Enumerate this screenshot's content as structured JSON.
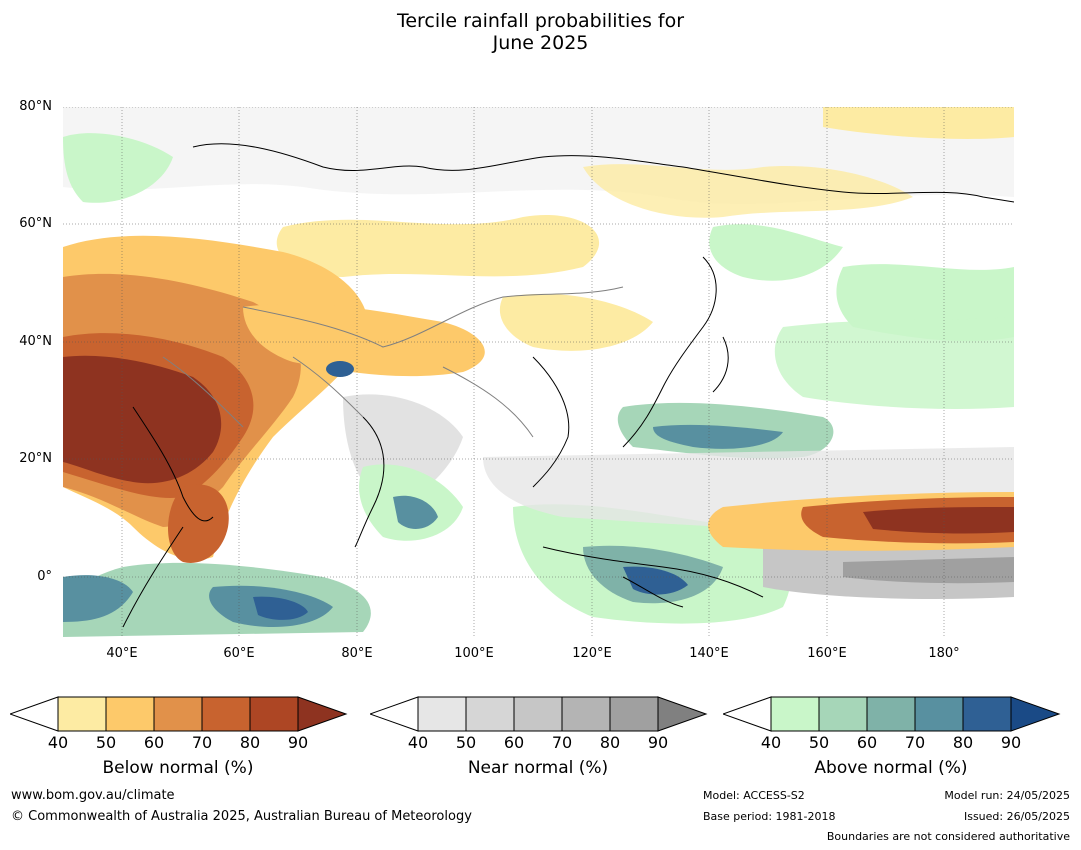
{
  "title_line1": "Tercile rainfall probabilities for",
  "title_line2": "June 2025",
  "map": {
    "lat_labels": [
      "80°N",
      "60°N",
      "40°N",
      "20°N",
      "0°"
    ],
    "lon_labels": [
      "40°E",
      "60°E",
      "80°E",
      "100°E",
      "120°E",
      "140°E",
      "160°E",
      "180°"
    ],
    "colors": {
      "below": [
        "#fdeba3",
        "#fdc96a",
        "#e1914a",
        "#c8632f",
        "#ad4624",
        "#8e3320"
      ],
      "near": [
        "#e6e6e6",
        "#d6d6d6",
        "#c6c6c6",
        "#b4b4b4",
        "#a0a0a0",
        "#808080"
      ],
      "above": [
        "#c9f6c9",
        "#a6d6b8",
        "#7fb2a8",
        "#5890a0",
        "#2f6094",
        "#1a4a86"
      ]
    }
  },
  "colorbars": [
    {
      "name": "below",
      "title": "Below normal (%)",
      "ticks": [
        "40",
        "50",
        "60",
        "70",
        "80",
        "90"
      ]
    },
    {
      "name": "near",
      "title": "Near normal (%)",
      "ticks": [
        "40",
        "50",
        "60",
        "70",
        "80",
        "90"
      ]
    },
    {
      "name": "above",
      "title": "Above normal (%)",
      "ticks": [
        "40",
        "50",
        "60",
        "70",
        "80",
        "90"
      ]
    }
  ],
  "footer": {
    "website": "www.bom.gov.au/climate",
    "copyright": "© Commonwealth of Australia 2025, Australian Bureau of Meteorology",
    "model": "Model: ACCESS-S2",
    "base_period": "Base period: 1981-2018",
    "model_run": "Model run: 24/05/2025",
    "issued": "Issued: 26/05/2025",
    "boundaries": "Boundaries are not considered authoritative"
  }
}
